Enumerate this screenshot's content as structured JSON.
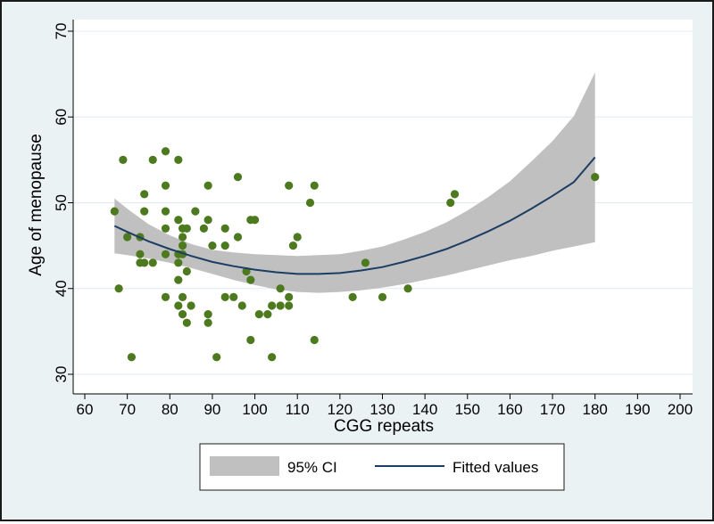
{
  "chart_data": {
    "type": "scatter",
    "xlabel": "CGG repeats",
    "ylabel": "Age of menopause",
    "xlim": [
      60,
      200
    ],
    "ylim": [
      30,
      70
    ],
    "xticks": [
      60,
      70,
      80,
      90,
      100,
      110,
      120,
      130,
      140,
      150,
      160,
      170,
      180,
      190,
      200
    ],
    "yticks": [
      30,
      40,
      50,
      60,
      70
    ],
    "grid": true,
    "legend_position": "bottom",
    "legend": {
      "ci_label": "95% CI",
      "fit_label": "Fitted values"
    },
    "colors": {
      "background": "#eaf2f3",
      "plot_region": "#ffffff",
      "points": "#4d7a1f",
      "fit_line": "#1c3d63",
      "ci_band": "#c0c0c0"
    },
    "points": [
      [
        67,
        49
      ],
      [
        68,
        40
      ],
      [
        69,
        55
      ],
      [
        70,
        46
      ],
      [
        71,
        32
      ],
      [
        73,
        46
      ],
      [
        73,
        44
      ],
      [
        73,
        43
      ],
      [
        74,
        51
      ],
      [
        74,
        49
      ],
      [
        74,
        43
      ],
      [
        76,
        55
      ],
      [
        76,
        43
      ],
      [
        79,
        56
      ],
      [
        79,
        52
      ],
      [
        79,
        49
      ],
      [
        79,
        47
      ],
      [
        79,
        44
      ],
      [
        79,
        39
      ],
      [
        82,
        55
      ],
      [
        82,
        48
      ],
      [
        82,
        44
      ],
      [
        82,
        43
      ],
      [
        82,
        41
      ],
      [
        82,
        38
      ],
      [
        83,
        47
      ],
      [
        83,
        46
      ],
      [
        83,
        45
      ],
      [
        83,
        44
      ],
      [
        83,
        39
      ],
      [
        83,
        37
      ],
      [
        84,
        47
      ],
      [
        84,
        42
      ],
      [
        84,
        36
      ],
      [
        85,
        38
      ],
      [
        86,
        49
      ],
      [
        88,
        47
      ],
      [
        89,
        52
      ],
      [
        89,
        48
      ],
      [
        89,
        37
      ],
      [
        89,
        36
      ],
      [
        90,
        45
      ],
      [
        91,
        32
      ],
      [
        93,
        47
      ],
      [
        93,
        45
      ],
      [
        93,
        39
      ],
      [
        95,
        39
      ],
      [
        96,
        53
      ],
      [
        96,
        46
      ],
      [
        97,
        38
      ],
      [
        98,
        42
      ],
      [
        99,
        41
      ],
      [
        99,
        34
      ],
      [
        99,
        48
      ],
      [
        100,
        48
      ],
      [
        101,
        37
      ],
      [
        103,
        37
      ],
      [
        104,
        38
      ],
      [
        104,
        32
      ],
      [
        106,
        40
      ],
      [
        106,
        38
      ],
      [
        108,
        52
      ],
      [
        108,
        39
      ],
      [
        108,
        38
      ],
      [
        109,
        45
      ],
      [
        110,
        46
      ],
      [
        113,
        50
      ],
      [
        114,
        52
      ],
      [
        114,
        34
      ],
      [
        123,
        39
      ],
      [
        126,
        43
      ],
      [
        130,
        39
      ],
      [
        136,
        40
      ],
      [
        146,
        50
      ],
      [
        147,
        51
      ],
      [
        180,
        53
      ]
    ],
    "fit": {
      "x": [
        67,
        70,
        75,
        80,
        85,
        90,
        95,
        100,
        105,
        110,
        115,
        120,
        125,
        130,
        135,
        140,
        145,
        150,
        155,
        160,
        165,
        170,
        175,
        180
      ],
      "y": [
        47.3,
        46.6,
        45.5,
        44.6,
        43.8,
        43.1,
        42.6,
        42.2,
        41.9,
        41.7,
        41.7,
        41.8,
        42.1,
        42.5,
        43.1,
        43.8,
        44.6,
        45.6,
        46.7,
        47.9,
        49.3,
        50.8,
        52.4,
        55.3
      ],
      "ci_lower": [
        44.1,
        43.9,
        43.5,
        43.0,
        42.4,
        41.7,
        41.0,
        40.4,
        39.9,
        39.6,
        39.5,
        39.6,
        39.8,
        40.1,
        40.5,
        41.0,
        41.5,
        42.1,
        42.7,
        43.3,
        43.8,
        44.4,
        44.9,
        45.4
      ],
      "ci_upper": [
        50.5,
        49.3,
        47.5,
        46.2,
        45.2,
        44.5,
        44.2,
        44.0,
        43.9,
        43.8,
        43.9,
        44.0,
        44.4,
        44.9,
        45.7,
        46.6,
        47.7,
        49.1,
        50.7,
        52.5,
        54.8,
        57.2,
        60.1,
        65.2
      ]
    }
  }
}
